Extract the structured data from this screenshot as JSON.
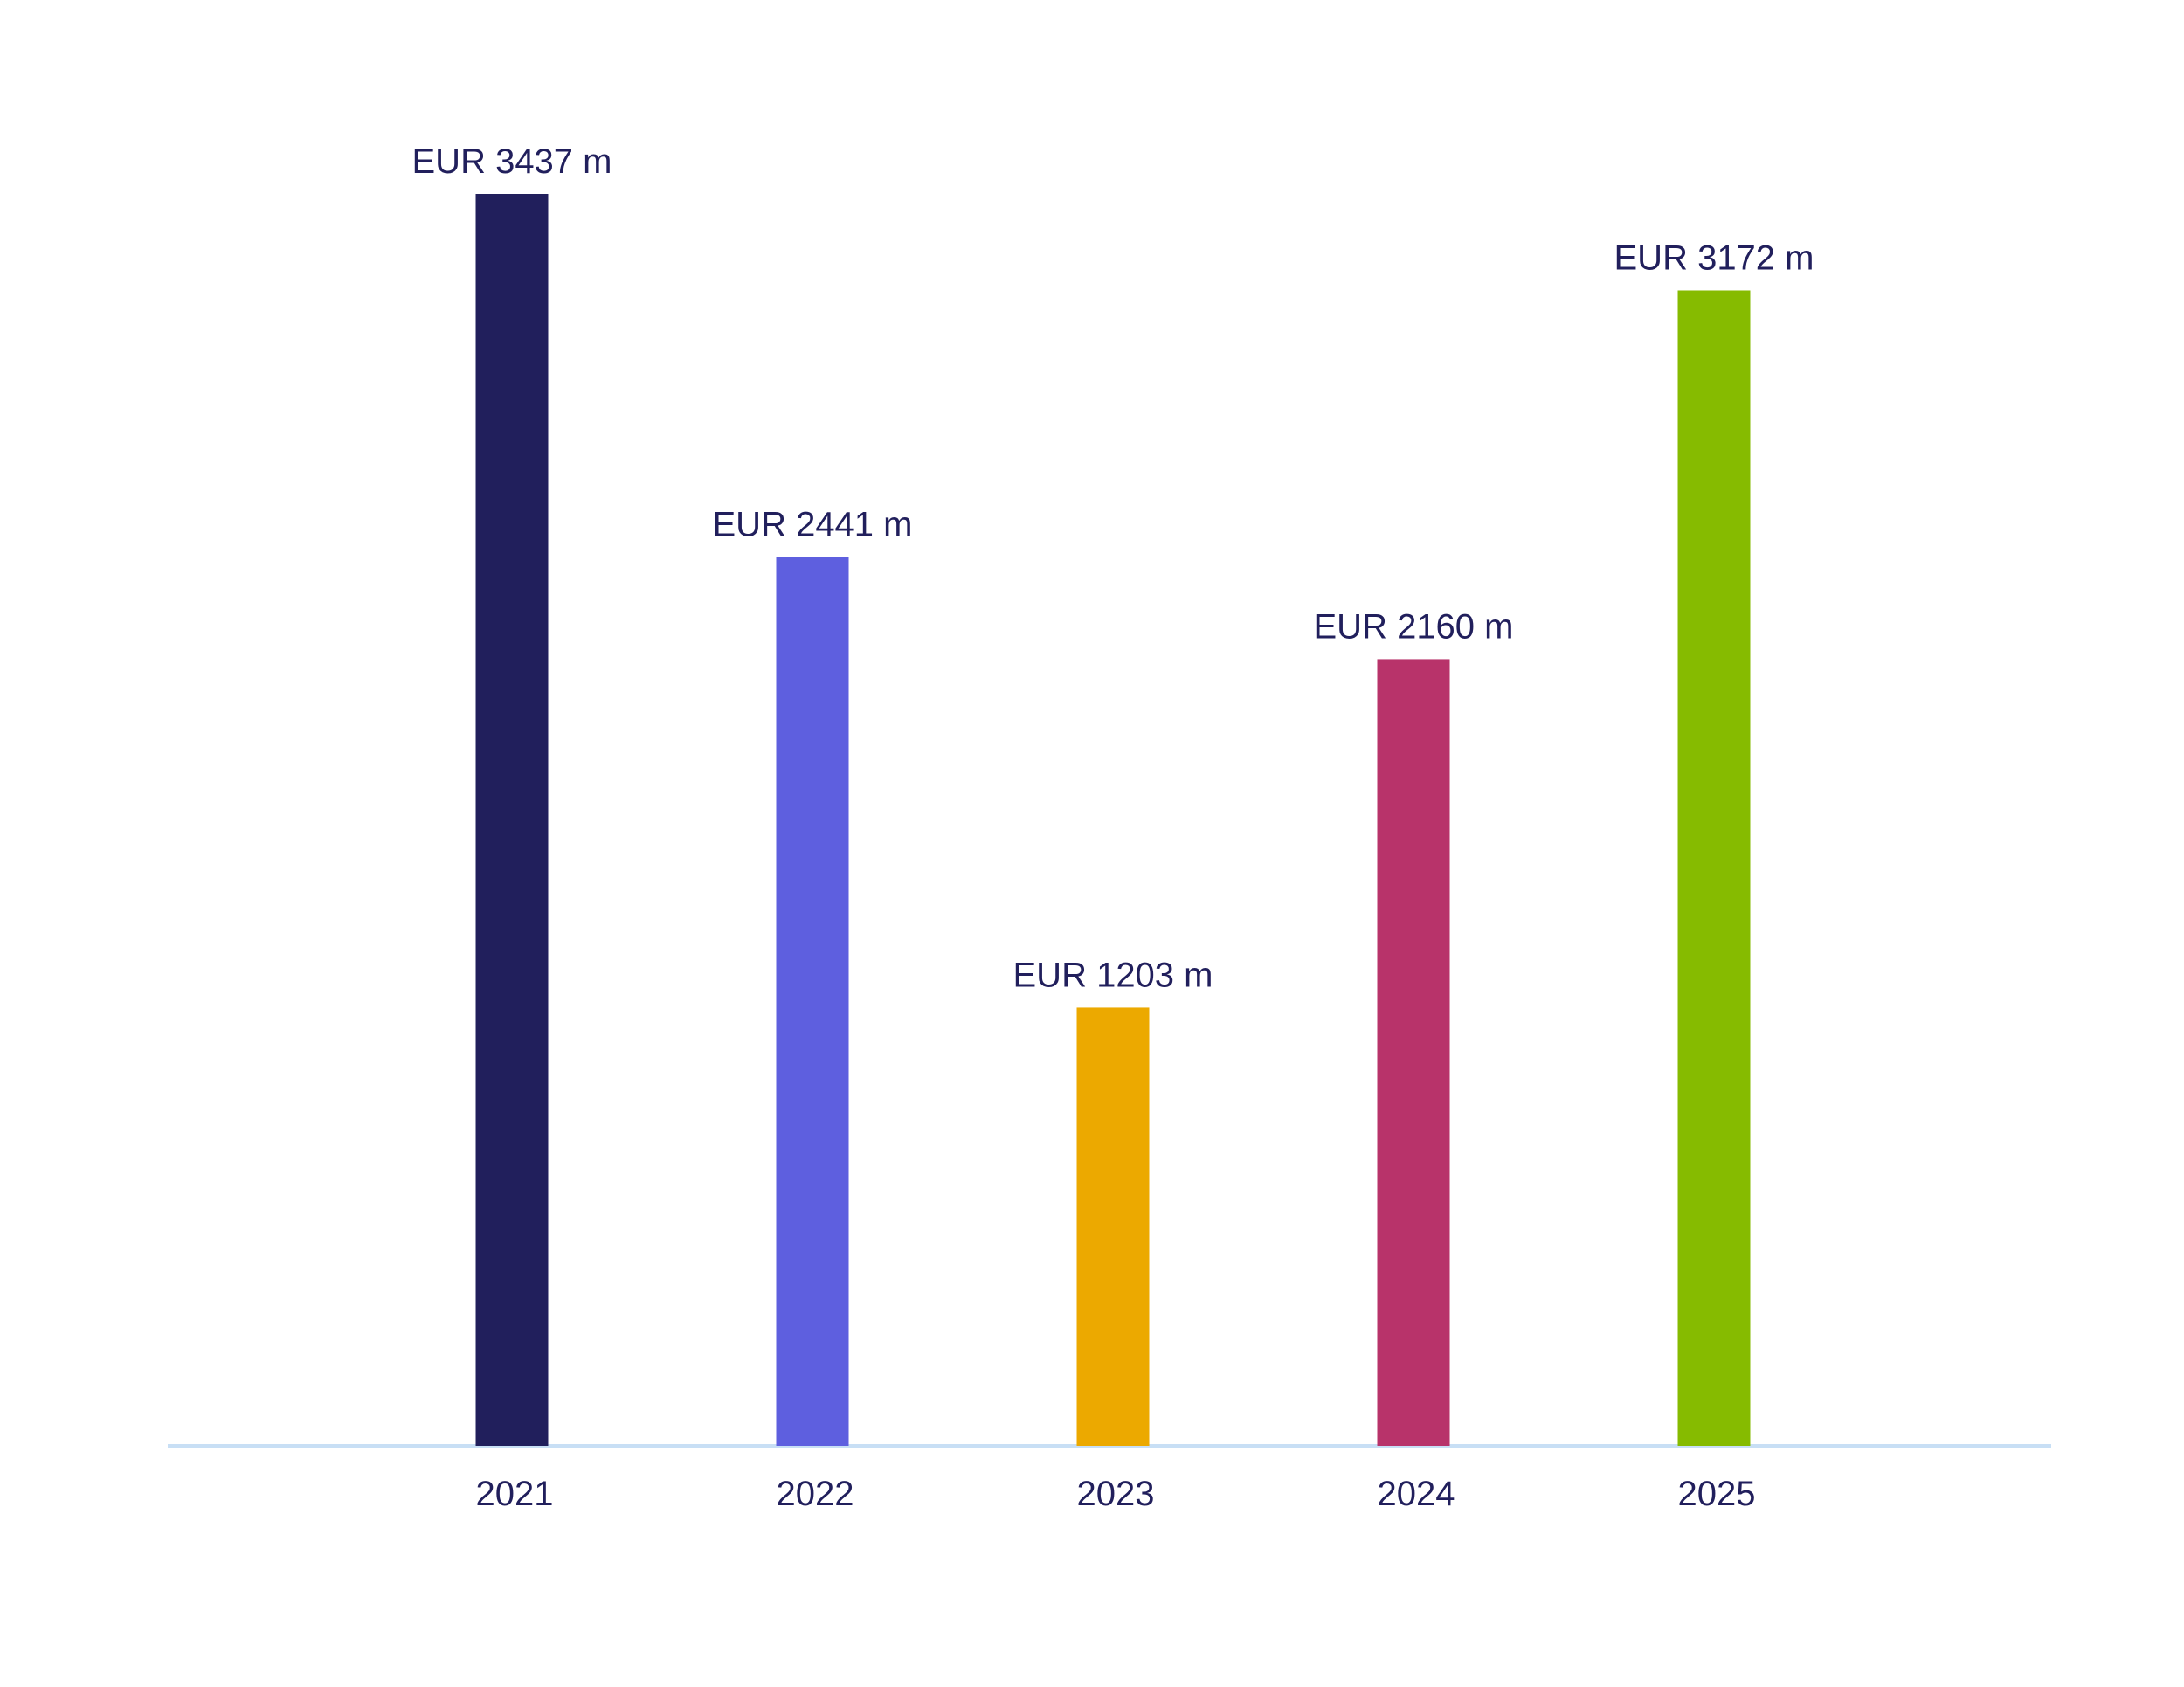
{
  "chart_data": {
    "type": "bar",
    "categories": [
      "2021",
      "2022",
      "2023",
      "2024",
      "2025"
    ],
    "values": [
      3437,
      2441,
      1203,
      2160,
      3172
    ],
    "value_labels": [
      "EUR 3437 m",
      "EUR 2441 m",
      "EUR 1203 m",
      "EUR 2160 m",
      "EUR 3172 m"
    ],
    "colors": [
      "#211f5c",
      "#5e5fdf",
      "#eca900",
      "#b8336a",
      "#86bb00"
    ]
  }
}
